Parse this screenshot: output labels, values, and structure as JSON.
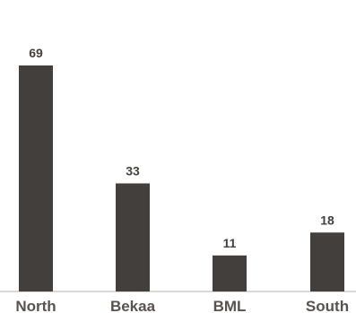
{
  "chart_data": {
    "type": "bar",
    "categories": [
      "North",
      "Bekaa",
      "BML",
      "South"
    ],
    "values": [
      69,
      33,
      11,
      18
    ],
    "title": "",
    "xlabel": "",
    "ylabel": "",
    "ylim": [
      0,
      69
    ],
    "grid": false,
    "legend": "none",
    "colors": {
      "bar": "#433f3c",
      "value_label": "#433f3c",
      "category_label": "#59534f",
      "baseline": "#d9d9d9"
    }
  }
}
